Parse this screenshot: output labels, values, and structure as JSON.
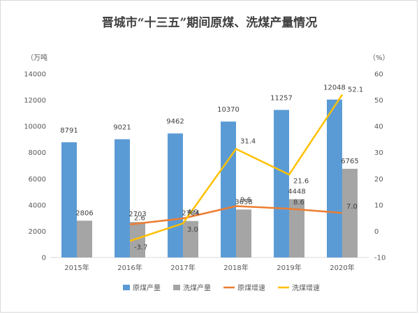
{
  "chart_data": {
    "type": "bar",
    "title": "晋城市“十三五”期间原煤、洗煤产量情况",
    "y_left_unit": "（万吨",
    "y_right_unit": "（%）",
    "categories": [
      "2015年",
      "2016年",
      "2017年",
      "2018年",
      "2019年",
      "2020年"
    ],
    "y_left_ticks": [
      "0",
      "2000",
      "4000",
      "6000",
      "8000",
      "10000",
      "12000",
      "14000"
    ],
    "y_right_ticks": [
      "-10",
      "0",
      "10",
      "20",
      "30",
      "40",
      "50",
      "60"
    ],
    "ylim_left": [
      0,
      14000
    ],
    "ylim_right": [
      -10,
      60
    ],
    "series": [
      {
        "name": "原煤产量",
        "kind": "bar",
        "axis": "left",
        "color": "#5b9bd5",
        "values": [
          8791,
          9021,
          9462,
          10370,
          11257,
          12048
        ],
        "labels": [
          "8791",
          "9021",
          "9462",
          "10370",
          "11257",
          "12048"
        ]
      },
      {
        "name": "洗煤产量",
        "kind": "bar",
        "axis": "left",
        "color": "#a5a5a5",
        "values": [
          2806,
          2703,
          2784,
          3658,
          4448,
          6765
        ],
        "labels": [
          "2806",
          "2703",
          "2784",
          "3658",
          "4448",
          "6765"
        ]
      },
      {
        "name": "原煤增速",
        "kind": "line",
        "axis": "right",
        "color": "#ed7d31",
        "values": [
          null,
          2.6,
          4.9,
          9.6,
          8.6,
          7.0
        ],
        "labels": [
          "",
          "2.6",
          "4.9",
          "9.6",
          "8.6",
          "7.0"
        ]
      },
      {
        "name": "洗煤增速",
        "kind": "line",
        "axis": "right",
        "color": "#ffc000",
        "values": [
          null,
          -3.7,
          3.0,
          31.4,
          21.6,
          52.1
        ],
        "labels": [
          "",
          "-3.7",
          "3.0",
          "31.4",
          "21.6",
          "52.1"
        ]
      }
    ],
    "legend_position": "bottom",
    "grid": false
  }
}
